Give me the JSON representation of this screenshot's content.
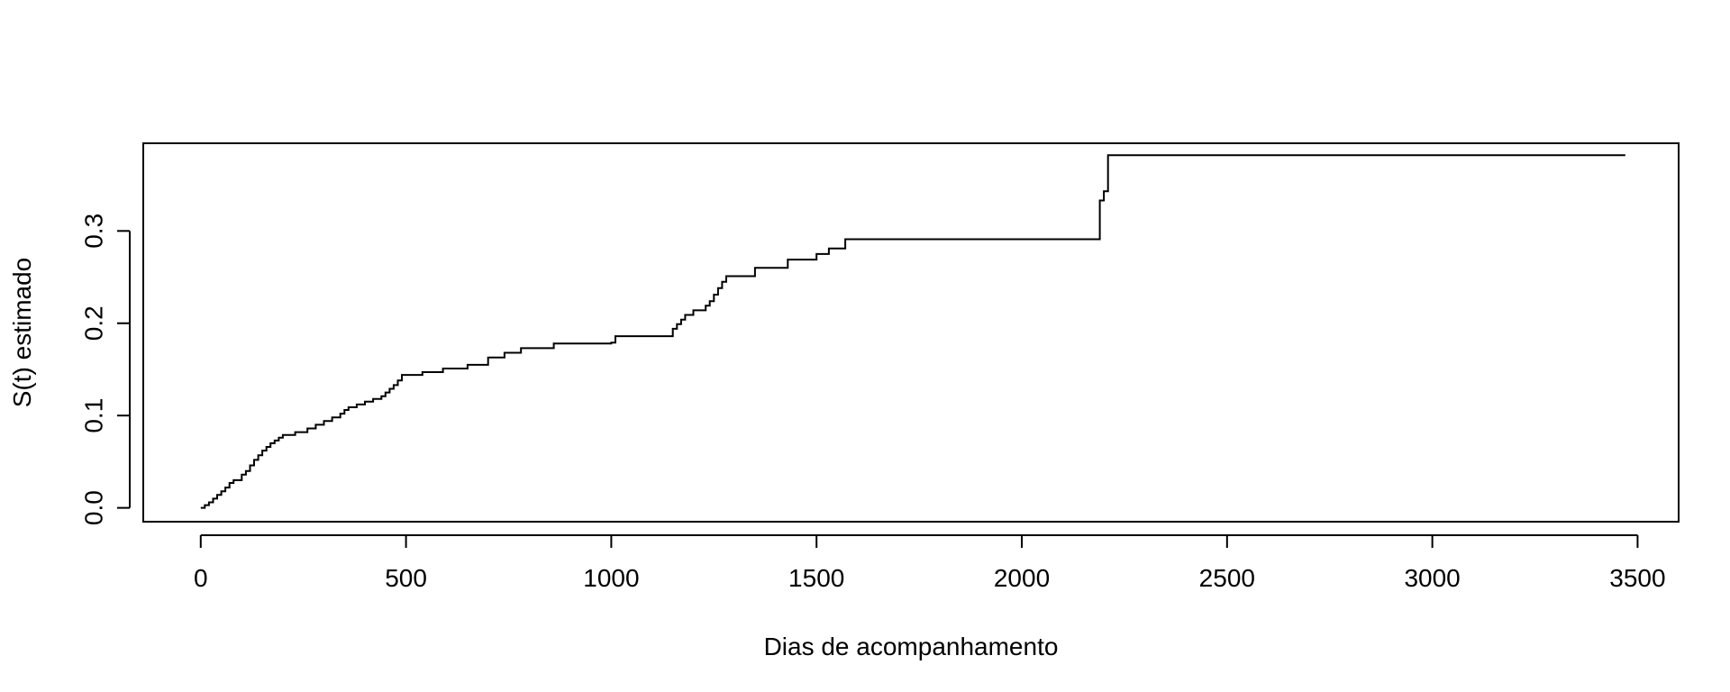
{
  "chart_data": {
    "type": "line",
    "step": true,
    "title": "",
    "xlabel": "Dias de acompanhamento",
    "ylabel": "S(t) estimado",
    "xlim": [
      -140,
      3600
    ],
    "ylim": [
      -0.015,
      0.395
    ],
    "x_ticks": [
      0,
      500,
      1000,
      1500,
      2000,
      2500,
      3000,
      3500
    ],
    "x_tick_labels": [
      "0",
      "500",
      "1000",
      "1500",
      "2000",
      "2500",
      "3000",
      "3500"
    ],
    "y_ticks": [
      0.0,
      0.1,
      0.2,
      0.3
    ],
    "y_tick_labels": [
      "0.0",
      "0.1",
      "0.2",
      "0.3"
    ],
    "grid": false,
    "legend": "none",
    "line_color": "#000000",
    "series": [
      {
        "x": [
          0,
          10,
          20,
          30,
          40,
          50,
          60,
          70,
          80,
          100,
          110,
          120,
          130,
          140,
          150,
          160,
          170,
          180,
          190,
          200,
          230,
          260,
          280,
          300,
          320,
          340,
          350,
          360,
          380,
          400,
          420,
          440,
          450,
          460,
          470,
          480,
          490,
          540,
          590,
          650,
          700,
          740,
          780,
          860,
          1000,
          1010,
          1150,
          1160,
          1170,
          1180,
          1200,
          1230,
          1240,
          1250,
          1260,
          1270,
          1280,
          1350,
          1430,
          1500,
          1530,
          1570,
          2190,
          2200,
          2210,
          3470
        ],
        "y": [
          0.0,
          0.003,
          0.006,
          0.01,
          0.014,
          0.018,
          0.022,
          0.027,
          0.03,
          0.036,
          0.04,
          0.046,
          0.052,
          0.057,
          0.062,
          0.066,
          0.07,
          0.073,
          0.076,
          0.079,
          0.082,
          0.086,
          0.09,
          0.094,
          0.098,
          0.102,
          0.106,
          0.109,
          0.112,
          0.115,
          0.118,
          0.121,
          0.125,
          0.129,
          0.133,
          0.138,
          0.144,
          0.147,
          0.151,
          0.155,
          0.163,
          0.168,
          0.173,
          0.178,
          0.179,
          0.186,
          0.194,
          0.199,
          0.204,
          0.209,
          0.214,
          0.219,
          0.224,
          0.231,
          0.238,
          0.245,
          0.251,
          0.26,
          0.269,
          0.275,
          0.281,
          0.291,
          0.333,
          0.343,
          0.382,
          0.382
        ]
      }
    ]
  }
}
